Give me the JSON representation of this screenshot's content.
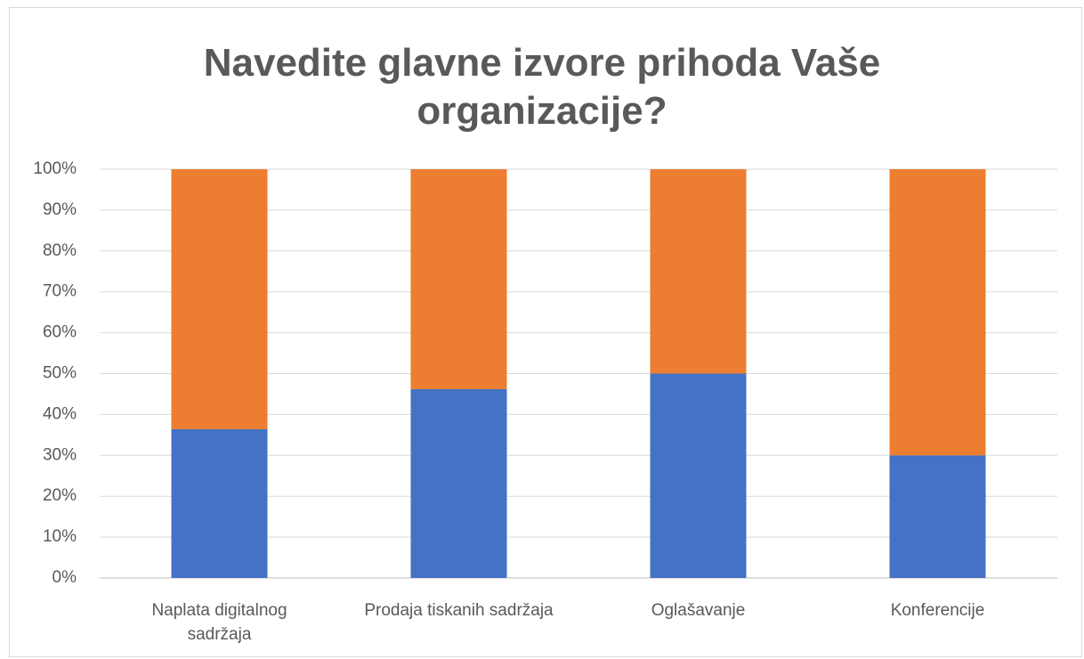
{
  "chart_data": {
    "type": "stacked_bar",
    "title": "Navedite glavne izvore prihoda Vaše organizacije?",
    "categories": [
      "Naplata digitalnog sadržaja",
      "Prodaja tiskanih sadržaja",
      "Oglašavanje",
      "Konferencije"
    ],
    "series": [
      {
        "color": "#4472c4",
        "values": [
          36.4,
          46.2,
          50,
          30
        ]
      },
      {
        "color": "#ed7d31",
        "values": [
          63.6,
          53.8,
          50,
          70
        ]
      }
    ],
    "ylim": [
      0,
      100
    ],
    "yticks": [
      {
        "value": 0,
        "label": "0%"
      },
      {
        "value": 10,
        "label": "10%"
      },
      {
        "value": 20,
        "label": "20%"
      },
      {
        "value": 30,
        "label": "30%"
      },
      {
        "value": 40,
        "label": "40%"
      },
      {
        "value": 50,
        "label": "50%"
      },
      {
        "value": 60,
        "label": "60%"
      },
      {
        "value": 70,
        "label": "70%"
      },
      {
        "value": 80,
        "label": "80%"
      },
      {
        "value": 90,
        "label": "90%"
      },
      {
        "value": 100,
        "label": "100%"
      }
    ],
    "grid": true
  }
}
